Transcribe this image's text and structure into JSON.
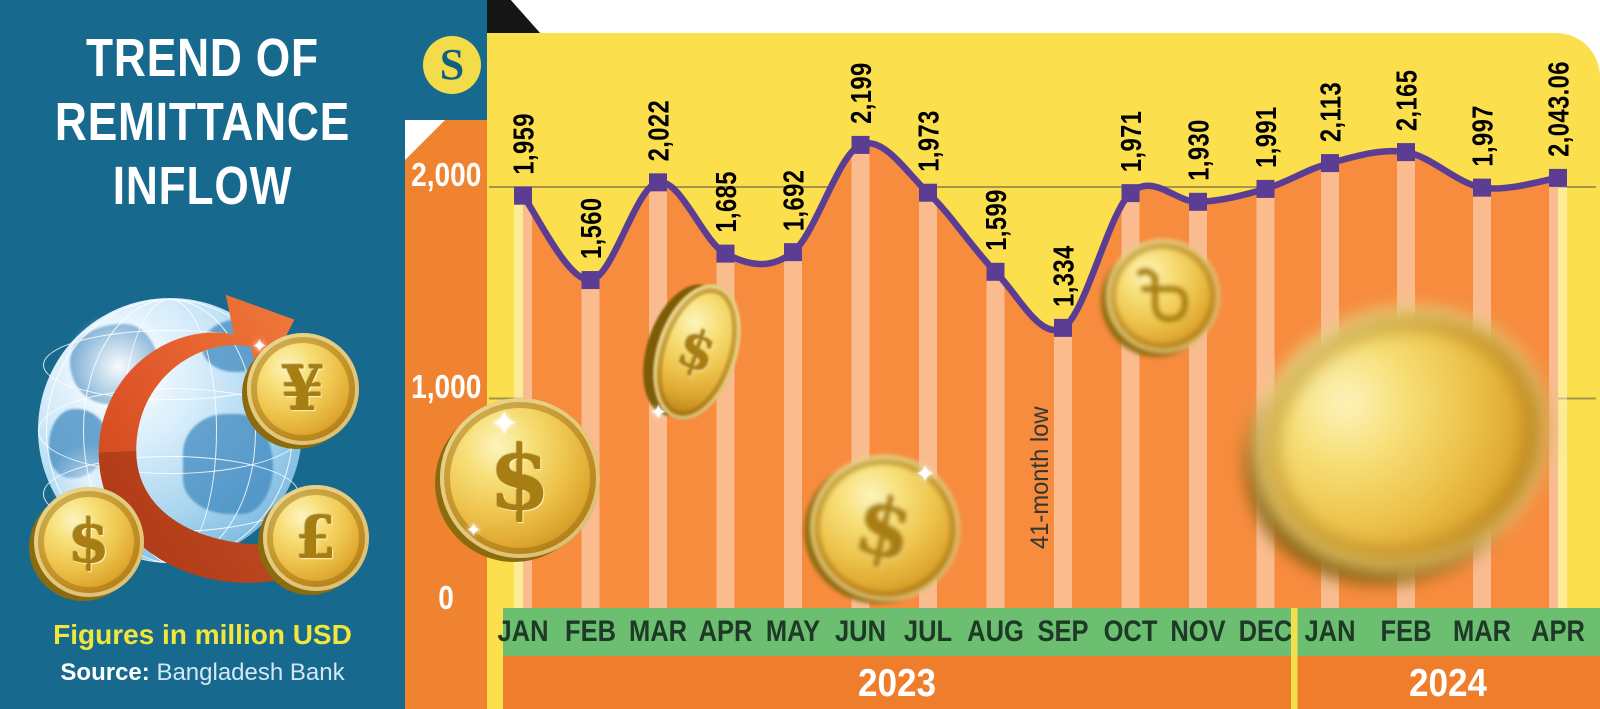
{
  "panel": {
    "title_lines": [
      "TREND OF",
      "REMITTANCE",
      "INFLOW"
    ],
    "note": "Figures in million USD",
    "source_label": "Source:",
    "source_text": "Bangladesh Bank",
    "logo_letter": "S",
    "globe_coin_symbols": {
      "yen": "¥",
      "dollar": "$",
      "pound": "£"
    }
  },
  "chart_data": {
    "type": "line",
    "title": "Trend of remittance inflow",
    "unit": "million USD",
    "source": "Bangladesh Bank",
    "months": [
      "JAN",
      "FEB",
      "MAR",
      "APR",
      "MAY",
      "JUN",
      "JUL",
      "AUG",
      "SEP",
      "OCT",
      "NOV",
      "DEC",
      "JAN",
      "FEB",
      "MAR",
      "APR"
    ],
    "values": [
      1959,
      1560,
      2022,
      1685,
      1692,
      2199,
      1973,
      1599,
      1334,
      1971,
      1930,
      1991,
      2113,
      2165,
      1997,
      2043.06
    ],
    "value_labels": [
      "1,959",
      "1,560",
      "2,022",
      "1,685",
      "1,692",
      "2,199",
      "1,973",
      "1,599",
      "1,334",
      "1,971",
      "1,930",
      "1,991",
      "2,113",
      "2,165",
      "1,997",
      "2,043.06"
    ],
    "years": [
      {
        "label": "2023",
        "month_count": 12
      },
      {
        "label": "2024",
        "month_count": 4
      }
    ],
    "y_ticks": [
      {
        "value": 2000,
        "label": "2,000"
      },
      {
        "value": 1000,
        "label": "1,000"
      },
      {
        "value": 0,
        "label": "0"
      }
    ],
    "ylim": [
      0,
      2400
    ],
    "xlabel": "",
    "ylabel": "",
    "grid": "horizontal gridlines at 1,000 and 2,000",
    "legend_position": "none",
    "annotation": {
      "text": "41-month low",
      "month": "SEP",
      "year": "2023",
      "value": 1334
    }
  },
  "colors": {
    "panel_teal": "#17698E",
    "chart_yellow": "#FBDF4D",
    "axis_orange": "#F0832F",
    "area_fill_orange": "#F78C3E",
    "line_purple": "#5B3D94",
    "month_band_green": "#6CBE70",
    "year_band_orange": "#EE7E2C",
    "month_text": "#1E3A27",
    "year_divider_yellow": "#F2DF4B",
    "coin_gold": "#E9C04A"
  },
  "decorations": {
    "chart_coin_symbols": [
      "$",
      "$",
      "$",
      "taka"
    ],
    "sparkle_glyph": "✦"
  }
}
